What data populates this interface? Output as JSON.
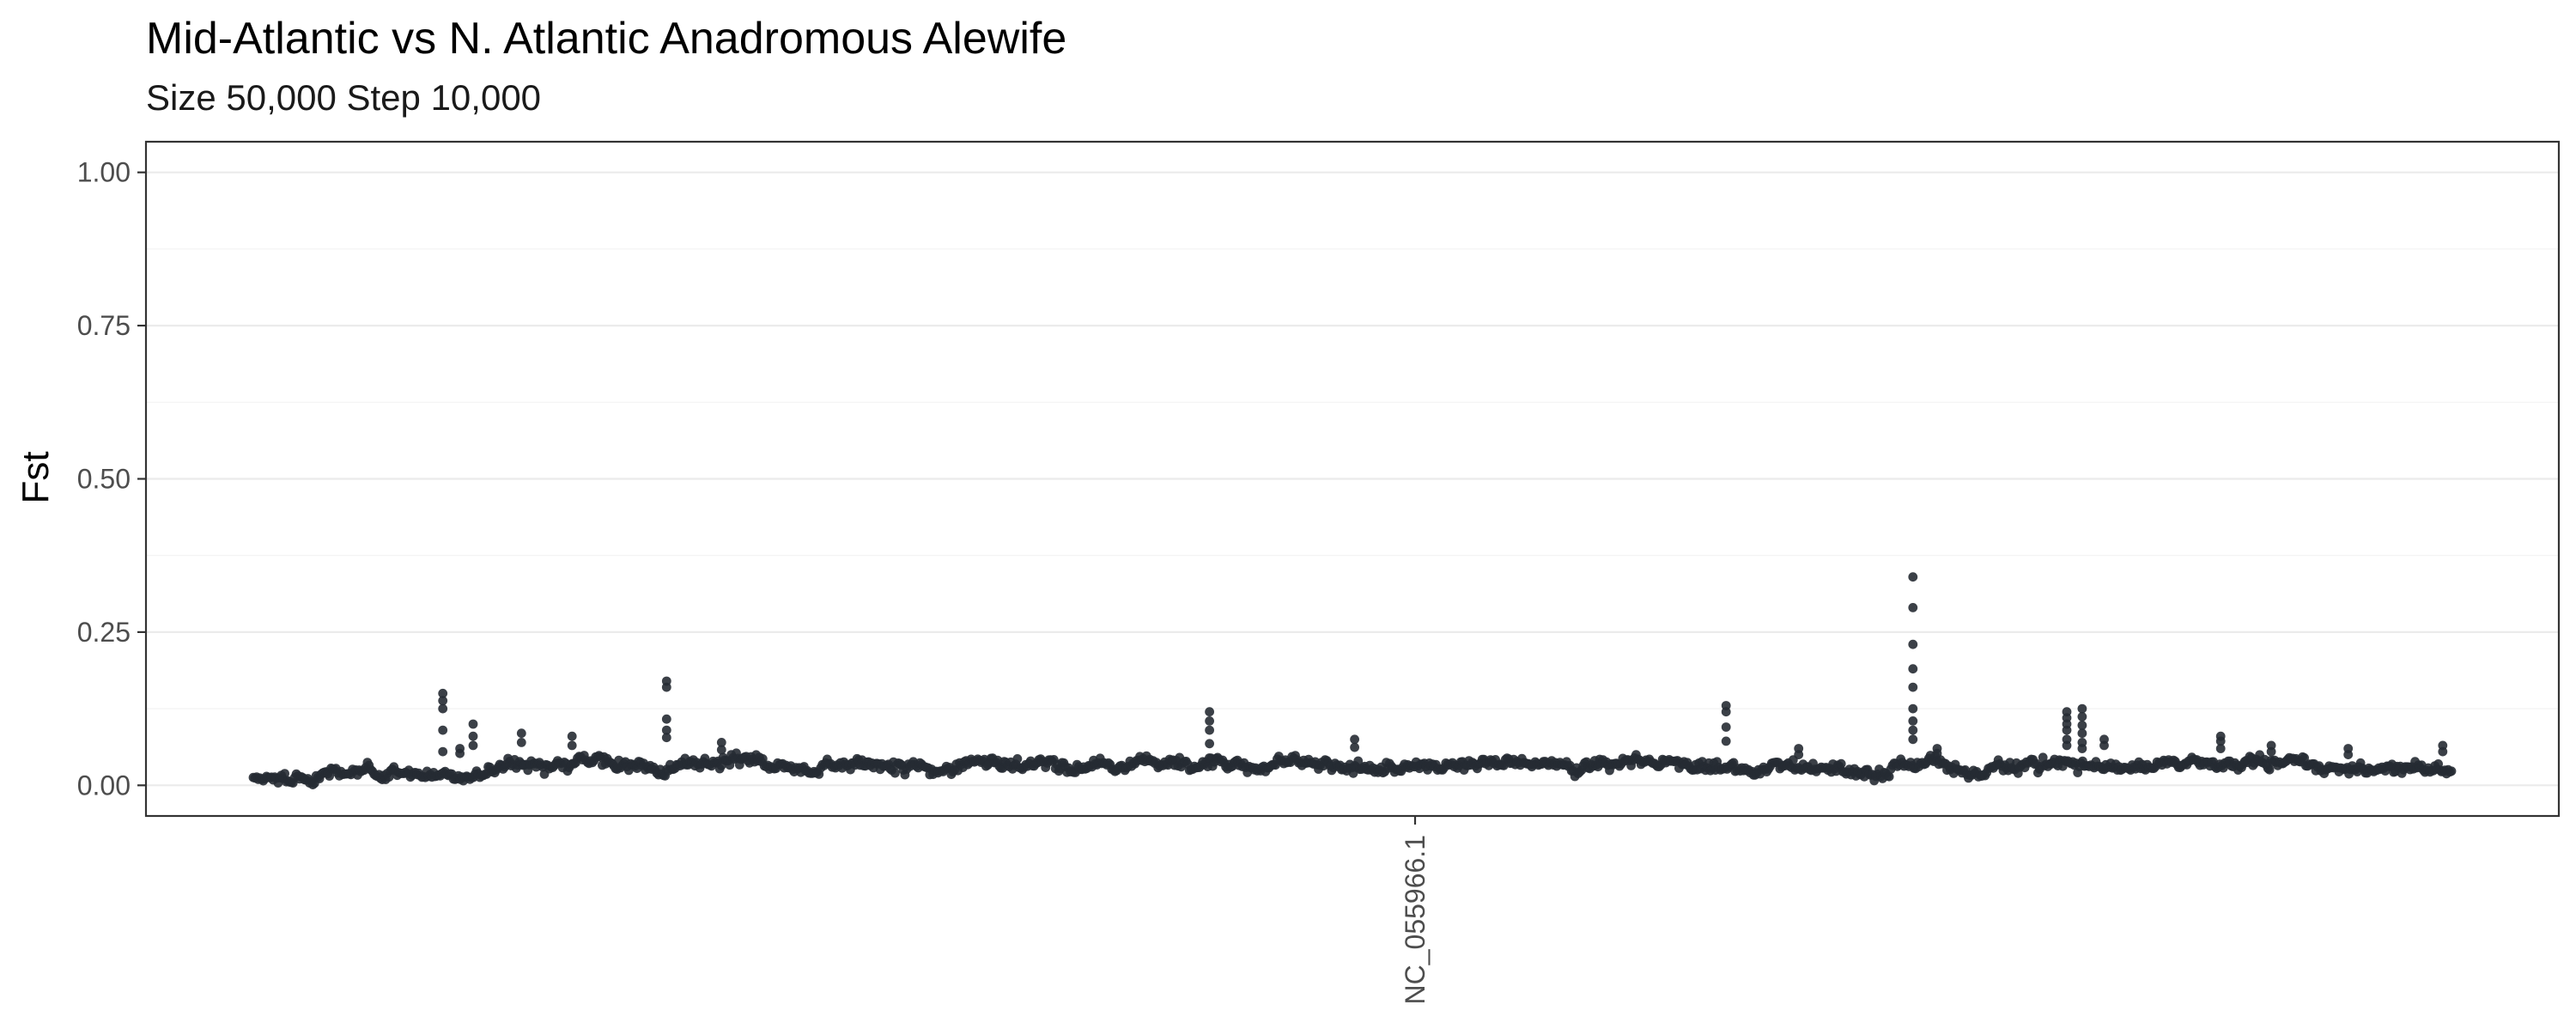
{
  "chart_data": {
    "type": "scatter",
    "title": "Mid-Atlantic vs N. Atlantic Anadromous Alewife",
    "subtitle": "Size 50,000 Step 10,000",
    "xlabel": "",
    "ylabel": "Fst",
    "ylim": [
      0,
      1
    ],
    "y_ticks": [
      "0.00",
      "0.25",
      "0.50",
      "0.75",
      "1.00"
    ],
    "y_tick_values": [
      0,
      0.25,
      0.5,
      0.75,
      1.0
    ],
    "x_categories": [
      "NC_055966.1"
    ],
    "grid": true,
    "point_color": "#262b33",
    "n_windows": 1330,
    "baseline_series": [
      0.015,
      0.012,
      0.018,
      0.022,
      0.025,
      0.02,
      0.016,
      0.018,
      0.021,
      0.024,
      0.028,
      0.03,
      0.035,
      0.038,
      0.032,
      0.028,
      0.03,
      0.034,
      0.04,
      0.036,
      0.03,
      0.026,
      0.028,
      0.032,
      0.03,
      0.027,
      0.025,
      0.028,
      0.034,
      0.04,
      0.036,
      0.032,
      0.03,
      0.034,
      0.038,
      0.034,
      0.03,
      0.032,
      0.036,
      0.04,
      0.038,
      0.034,
      0.03,
      0.028,
      0.03,
      0.032,
      0.034,
      0.036,
      0.034,
      0.032,
      0.03,
      0.028,
      0.032,
      0.036,
      0.034,
      0.03,
      0.028,
      0.03,
      0.034,
      0.032,
      0.03,
      0.028,
      0.026,
      0.03,
      0.034,
      0.03,
      0.028,
      0.032,
      0.036,
      0.034,
      0.032,
      0.03,
      0.028,
      0.03,
      0.034,
      0.03,
      0.032,
      0.034,
      0.03,
      0.028,
      0.032,
      0.03,
      0.028,
      0.026,
      0.022
    ],
    "outliers": [
      {
        "x": 0.0862,
        "y": [
          0.15,
          0.138,
          0.125,
          0.09,
          0.055
        ]
      },
      {
        "x": 0.094,
        "y": [
          0.06,
          0.052
        ]
      },
      {
        "x": 0.1,
        "y": [
          0.1,
          0.08,
          0.065
        ]
      },
      {
        "x": 0.122,
        "y": [
          0.085,
          0.07
        ]
      },
      {
        "x": 0.145,
        "y": [
          0.08,
          0.065
        ]
      },
      {
        "x": 0.188,
        "y": [
          0.17,
          0.16,
          0.108,
          0.09,
          0.078
        ]
      },
      {
        "x": 0.213,
        "y": [
          0.07,
          0.058
        ]
      },
      {
        "x": 0.435,
        "y": [
          0.12,
          0.105,
          0.09,
          0.068
        ]
      },
      {
        "x": 0.501,
        "y": [
          0.075,
          0.062
        ]
      },
      {
        "x": 0.67,
        "y": [
          0.13,
          0.12,
          0.095,
          0.072
        ]
      },
      {
        "x": 0.703,
        "y": [
          0.06,
          0.05
        ]
      },
      {
        "x": 0.755,
        "y": [
          0.34,
          0.29,
          0.23,
          0.19,
          0.16,
          0.125,
          0.105,
          0.09,
          0.075
        ]
      },
      {
        "x": 0.766,
        "y": [
          0.06,
          0.052
        ]
      },
      {
        "x": 0.825,
        "y": [
          0.12,
          0.11,
          0.1,
          0.09,
          0.075,
          0.065
        ]
      },
      {
        "x": 0.832,
        "y": [
          0.125,
          0.112,
          0.098,
          0.085,
          0.07,
          0.06
        ]
      },
      {
        "x": 0.842,
        "y": [
          0.075,
          0.065
        ]
      },
      {
        "x": 0.895,
        "y": [
          0.08,
          0.072,
          0.06
        ]
      },
      {
        "x": 0.918,
        "y": [
          0.065,
          0.055
        ]
      },
      {
        "x": 0.953,
        "y": [
          0.06,
          0.05
        ]
      },
      {
        "x": 0.996,
        "y": [
          0.065,
          0.055
        ]
      }
    ]
  }
}
